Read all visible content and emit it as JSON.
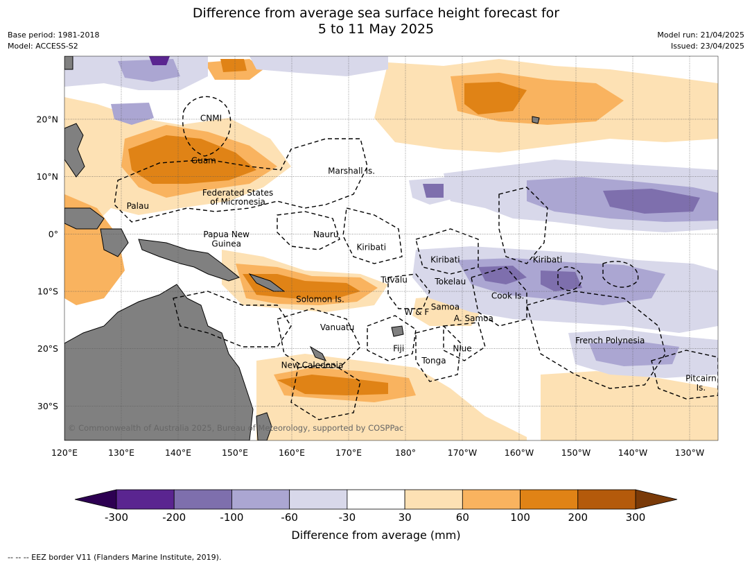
{
  "title": {
    "line1": "Difference from average sea surface height forecast for",
    "line2": "5 to 11 May 2025"
  },
  "meta": {
    "base_period": "Base period: 1981-2018",
    "model": "Model: ACCESS-S2",
    "model_run": "Model run: 21/04/2025",
    "issued": "Issued: 23/04/2025"
  },
  "map": {
    "lon_range": [
      120,
      235
    ],
    "lat_range": [
      -36,
      31
    ],
    "x_ticks": [
      {
        "lon": 120,
        "label": "120°E"
      },
      {
        "lon": 130,
        "label": "130°E"
      },
      {
        "lon": 140,
        "label": "140°E"
      },
      {
        "lon": 150,
        "label": "150°E"
      },
      {
        "lon": 160,
        "label": "160°E"
      },
      {
        "lon": 170,
        "label": "170°E"
      },
      {
        "lon": 180,
        "label": "180°"
      },
      {
        "lon": 190,
        "label": "170°W"
      },
      {
        "lon": 200,
        "label": "160°W"
      },
      {
        "lon": 210,
        "label": "150°W"
      },
      {
        "lon": 220,
        "label": "140°W"
      },
      {
        "lon": 230,
        "label": "130°W"
      }
    ],
    "y_ticks": [
      {
        "lat": 20,
        "label": "20°N"
      },
      {
        "lat": 10,
        "label": "10°N"
      },
      {
        "lat": 0,
        "label": "0°"
      },
      {
        "lat": -10,
        "label": "10°S"
      },
      {
        "lat": -20,
        "label": "20°S"
      },
      {
        "lat": -30,
        "label": "30°S"
      }
    ],
    "grid": true,
    "land_color": "#808080",
    "region_labels": [
      {
        "text": "CNMI",
        "lon": 145.8,
        "lat": 20.2
      },
      {
        "text": "Guam",
        "lon": 144.5,
        "lat": 12.8
      },
      {
        "text": "Marshall Is.",
        "lon": 170.5,
        "lat": 11.0
      },
      {
        "text": "Federated States",
        "lon": 150.5,
        "lat": 7.2
      },
      {
        "text": "of Micronesia",
        "lon": 150.5,
        "lat": 5.6
      },
      {
        "text": "Palau",
        "lon": 132.9,
        "lat": 4.9
      },
      {
        "text": "Papua New",
        "lon": 148.5,
        "lat": -0.1
      },
      {
        "text": "Guinea",
        "lon": 148.5,
        "lat": -1.7
      },
      {
        "text": "Nauru",
        "lon": 166.0,
        "lat": -0.1
      },
      {
        "text": "Kiribati",
        "lon": 174.0,
        "lat": -2.3
      },
      {
        "text": "Kiribati",
        "lon": 187.0,
        "lat": -4.5
      },
      {
        "text": "Kiribati",
        "lon": 205.0,
        "lat": -4.5
      },
      {
        "text": "Tuvalu",
        "lon": 178.0,
        "lat": -8.0
      },
      {
        "text": "Tokelau",
        "lon": 187.9,
        "lat": -8.3
      },
      {
        "text": "Cook Is.",
        "lon": 198.0,
        "lat": -10.8
      },
      {
        "text": "Solomon Is.",
        "lon": 165.0,
        "lat": -11.4
      },
      {
        "text": "Samoa",
        "lon": 187.0,
        "lat": -12.7
      },
      {
        "text": "W & F",
        "lon": 182.0,
        "lat": -13.6
      },
      {
        "text": "A. Samoa",
        "lon": 192.0,
        "lat": -14.7
      },
      {
        "text": "Vanuatu",
        "lon": 168.0,
        "lat": -16.3
      },
      {
        "text": "French Polynesia",
        "lon": 216.0,
        "lat": -18.6
      },
      {
        "text": "Fiji",
        "lon": 178.8,
        "lat": -20.0
      },
      {
        "text": "Niue",
        "lon": 190.0,
        "lat": -20.0
      },
      {
        "text": "Tonga",
        "lon": 185.0,
        "lat": -22.1
      },
      {
        "text": "New Caledonia",
        "lon": 163.6,
        "lat": -22.9
      },
      {
        "text": "Pitcairn",
        "lon": 232.0,
        "lat": -25.2
      },
      {
        "text": "Is.",
        "lon": 232.0,
        "lat": -26.8
      }
    ],
    "copyright": "© Commonwealth of Australia 2025, Bureau of Meteorology, supported by COSPPac"
  },
  "colorbar": {
    "title": "Difference from average (mm)",
    "ticks": [
      "-300",
      "-200",
      "-100",
      "-60",
      "-30",
      "30",
      "60",
      "100",
      "200",
      "300"
    ],
    "colors": [
      "#5a2590",
      "#7e6fad",
      "#aba6d2",
      "#d8d8ea",
      "#ffffff",
      "#fde1b4",
      "#f9b35f",
      "#e08316",
      "#b45a0b"
    ],
    "under_color": "#2d0052",
    "over_color": "#7a3a08"
  },
  "footer": "--  --  -- EEZ border V11 (Flanders Marine Institute, 2019)."
}
